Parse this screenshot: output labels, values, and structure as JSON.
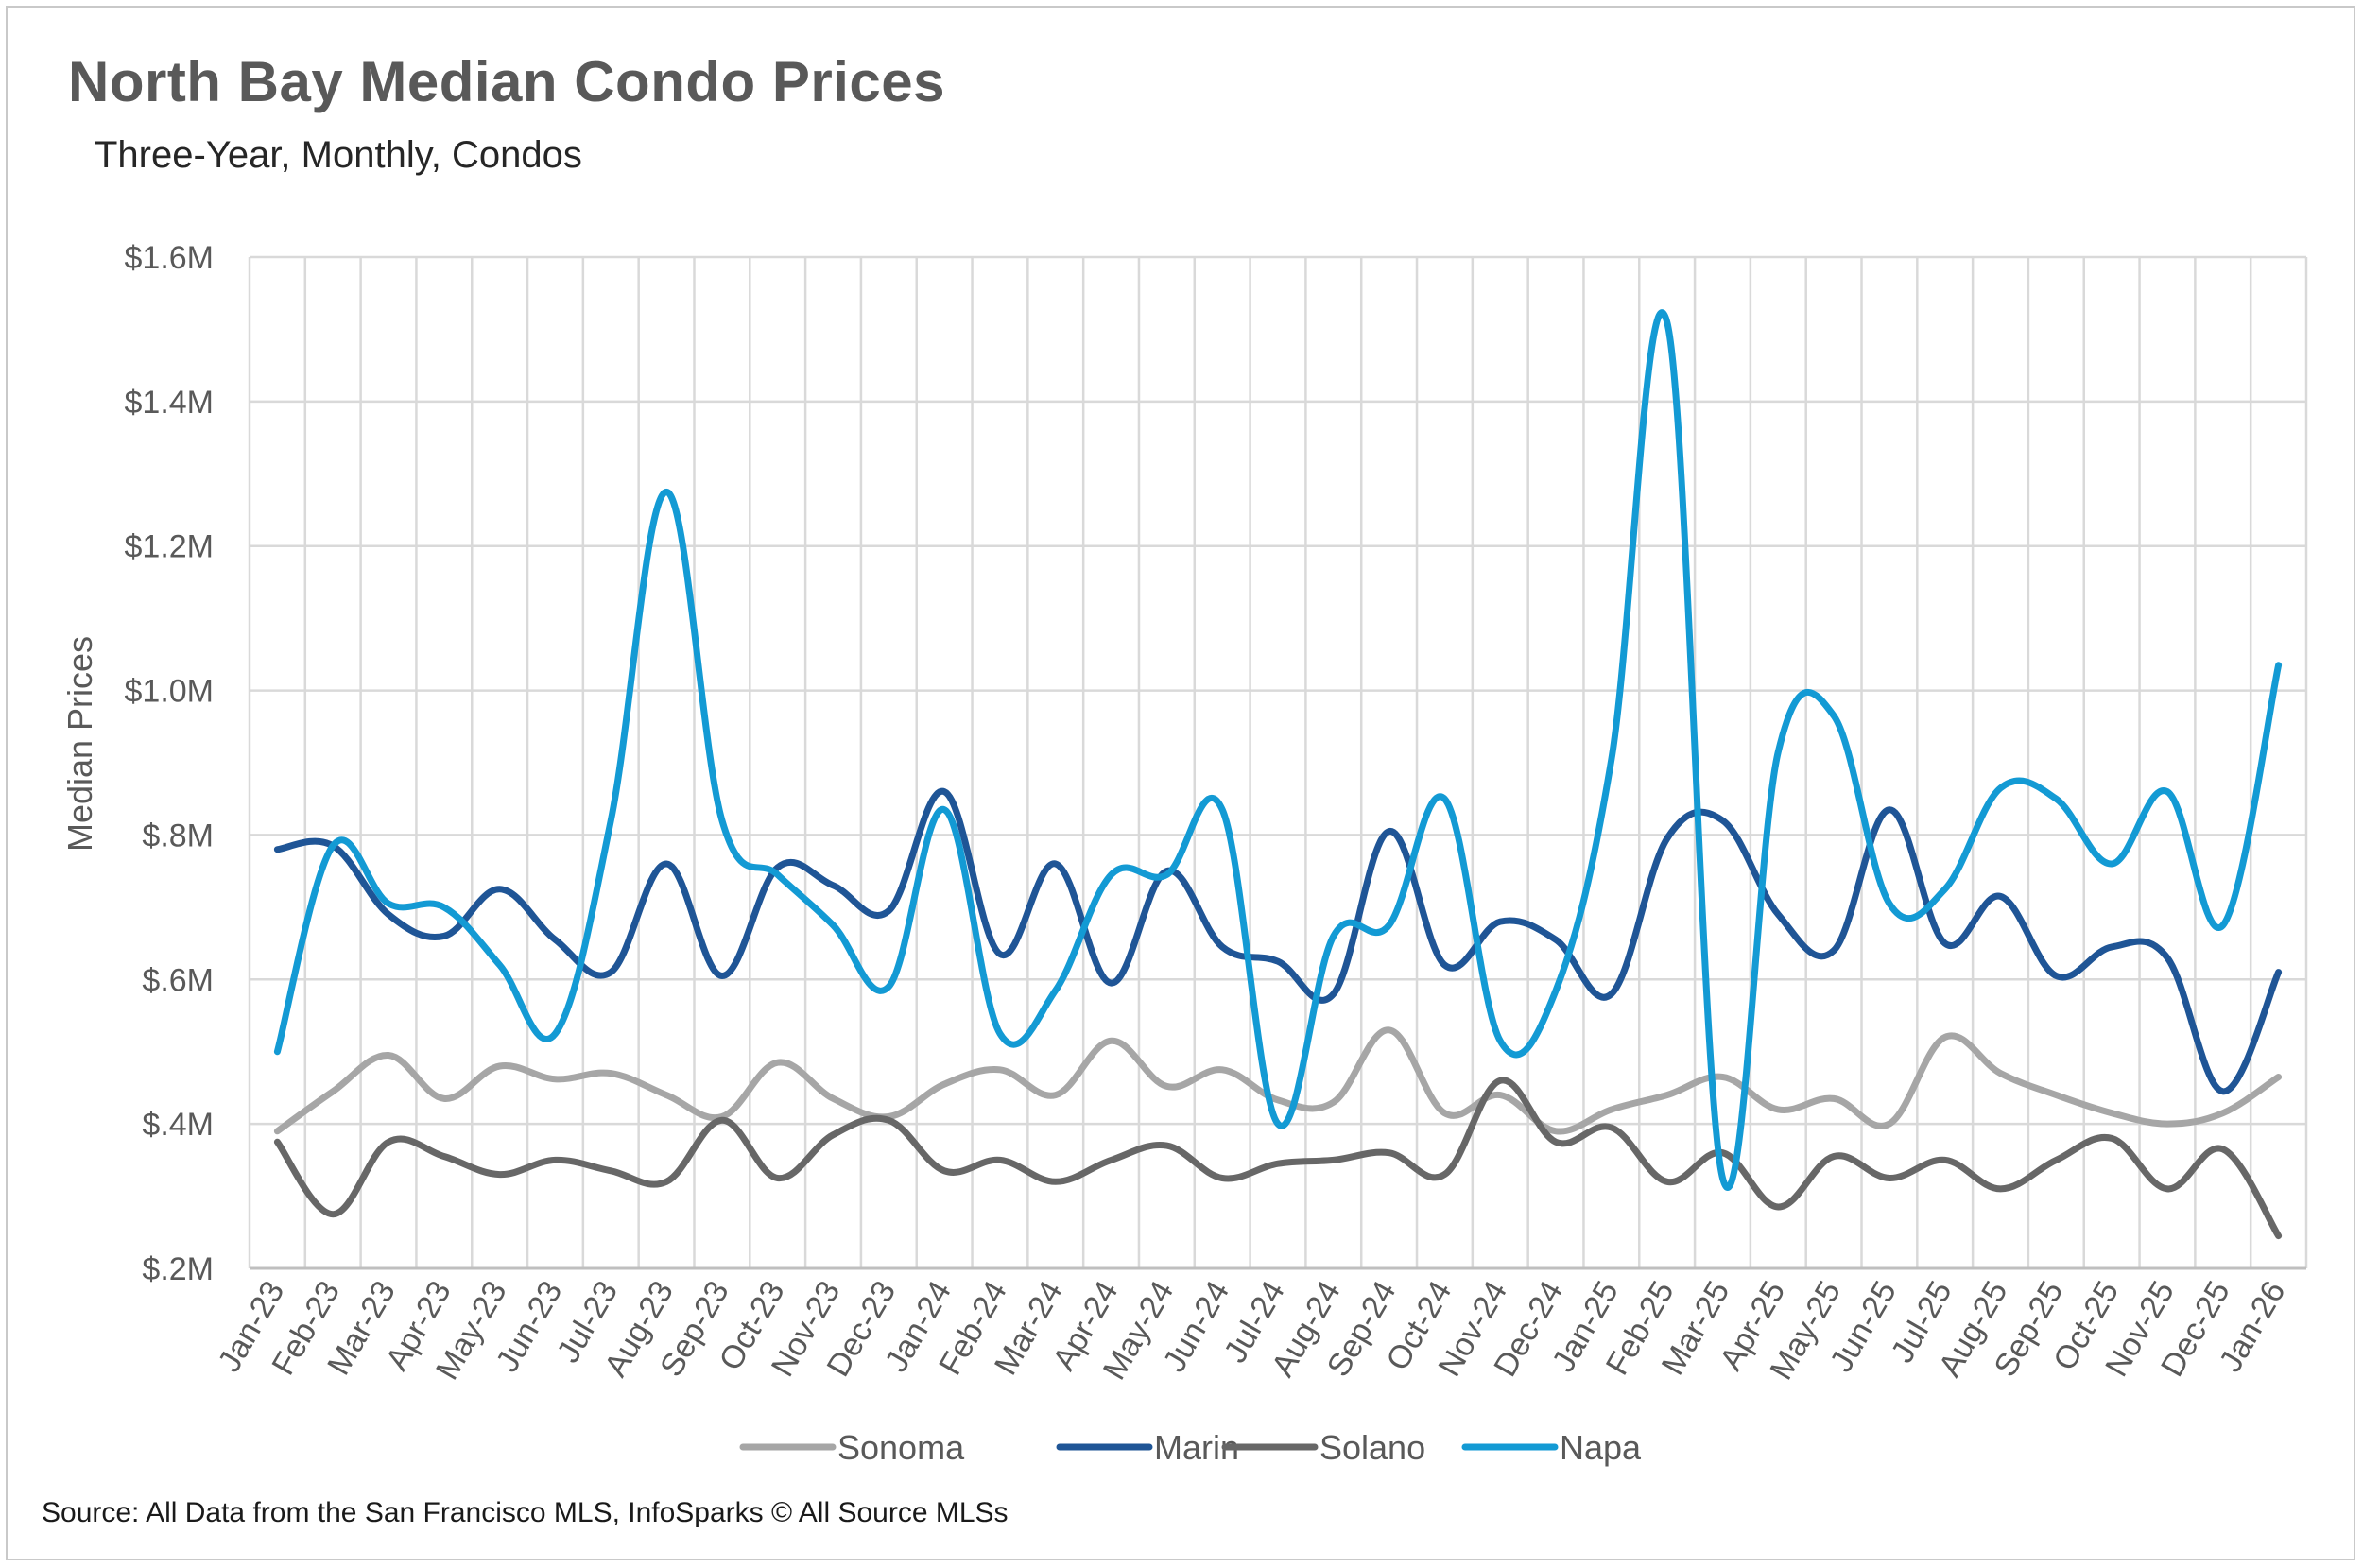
{
  "title": "North Bay Median Condo Prices",
  "subtitle": "Three-Year, Monthly, Condos",
  "source": "Source: All Data from the San Francisco MLS, InfoSparks © All Source MLSs",
  "chart_data": {
    "type": "line",
    "title": "North Bay Median Condo Prices",
    "subtitle": "Three-Year, Monthly, Condos",
    "xlabel": "",
    "ylabel": "Median Prices",
    "ylim": [
      200000,
      1600000
    ],
    "yticks": [
      200000,
      400000,
      600000,
      800000,
      1000000,
      1200000,
      1400000,
      1600000
    ],
    "ytick_labels": [
      "$.2M",
      "$.4M",
      "$.6M",
      "$.8M",
      "$1.0M",
      "$1.2M",
      "$1.4M",
      "$1.6M"
    ],
    "grid": true,
    "legend_position": "bottom",
    "categories": [
      "Jan-23",
      "Feb-23",
      "Mar-23",
      "Apr-23",
      "May-23",
      "Jun-23",
      "Jul-23",
      "Aug-23",
      "Sep-23",
      "Oct-23",
      "Nov-23",
      "Dec-23",
      "Jan-24",
      "Feb-24",
      "Mar-24",
      "Apr-24",
      "May-24",
      "Jun-24",
      "Jul-24",
      "Aug-24",
      "Sep-24",
      "Oct-24",
      "Nov-24",
      "Dec-24",
      "Jan-25",
      "Feb-25",
      "Mar-25",
      "Apr-25",
      "May-25",
      "Jun-25",
      "Jul-25",
      "Aug-25",
      "Sep-25",
      "Oct-25",
      "Nov-25",
      "Dec-25",
      "Jan-26"
    ],
    "series": [
      {
        "name": "Sonoma",
        "color": "#a6a6a6",
        "values": [
          390000,
          445000,
          495000,
          435000,
          480000,
          462000,
          470000,
          440000,
          410000,
          485000,
          435000,
          410000,
          455000,
          475000,
          440000,
          515000,
          452000,
          475000,
          433000,
          430000,
          530000,
          415000,
          440000,
          390000,
          420000,
          440000,
          465000,
          420000,
          435000,
          400000,
          520000,
          470000,
          440000,
          415000,
          400000,
          415000,
          465000
        ]
      },
      {
        "name": "Marin",
        "color": "#1f5596",
        "values": [
          780000,
          785000,
          690000,
          660000,
          725000,
          655000,
          610000,
          760000,
          605000,
          755000,
          730000,
          695000,
          860000,
          635000,
          760000,
          595000,
          750000,
          645000,
          625000,
          580000,
          805000,
          620000,
          680000,
          655000,
          580000,
          795000,
          820000,
          690000,
          640000,
          835000,
          650000,
          715000,
          605000,
          645000,
          630000,
          445000,
          610000
        ]
      },
      {
        "name": "Solano",
        "color": "#676767",
        "values": [
          375000,
          275000,
          375000,
          355000,
          330000,
          350000,
          335000,
          320000,
          405000,
          325000,
          385000,
          405000,
          335000,
          350000,
          320000,
          350000,
          370000,
          325000,
          345000,
          350000,
          360000,
          330000,
          460000,
          375000,
          395000,
          320000,
          360000,
          285000,
          355000,
          325000,
          350000,
          310000,
          350000,
          380000,
          310000,
          365000,
          245000
        ]
      },
      {
        "name": "Napa",
        "color": "#139ad4",
        "values": [
          500000,
          785000,
          705000,
          700000,
          620000,
          525000,
          820000,
          1275000,
          820000,
          745000,
          675000,
          590000,
          835000,
          525000,
          585000,
          745000,
          745000,
          835000,
          400000,
          660000,
          675000,
          850000,
          515000,
          585000,
          905000,
          1510000,
          325000,
          915000,
          965000,
          705000,
          725000,
          865000,
          850000,
          760000,
          860000,
          675000,
          1035000
        ]
      }
    ]
  }
}
